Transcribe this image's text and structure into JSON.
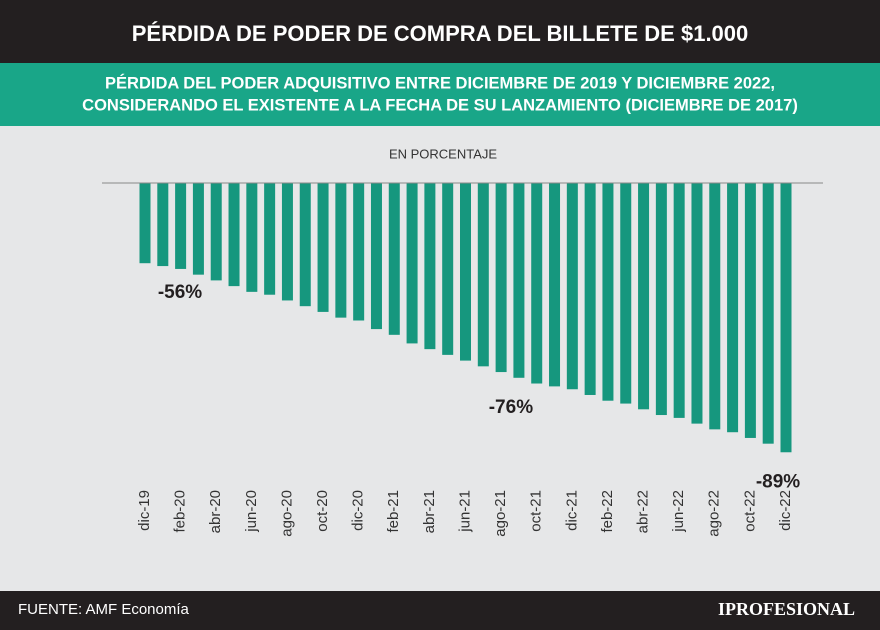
{
  "chart_data": {
    "type": "bar",
    "title": "PÉRDIDA DE PODER DE COMPRA DEL BILLETE DE $1.000",
    "subtitle_lines": [
      "PÉRDIDA DEL PODER ADQUISITIVO ENTRE DICIEMBRE DE 2019 Y DICIEMBRE 2022,",
      "CONSIDERANDO EL EXISTENTE A LA FECHA DE SU LANZAMIENTO (DICIEMBRE DE 2017)"
    ],
    "y_axis_label": "EN PORCENTAJE",
    "categories": [
      "dic-19",
      null,
      "feb-20",
      null,
      "abr-20",
      null,
      "jun-20",
      null,
      "ago-20",
      null,
      "oct-20",
      null,
      "dic-20",
      null,
      "feb-21",
      null,
      "abr-21",
      null,
      "jun-21",
      null,
      "ago-21",
      null,
      "oct-21",
      null,
      "dic-21",
      null,
      "feb-22",
      null,
      "abr-22",
      null,
      "jun-22",
      null,
      "ago-22",
      null,
      "oct-22",
      null,
      "dic-22"
    ],
    "values": [
      -56,
      -56.5,
      -57,
      -58,
      -59,
      -60,
      -61,
      -61.5,
      -62.5,
      -63.5,
      -64.5,
      -65.5,
      -66,
      -67.5,
      -68.5,
      -70,
      -71,
      -72,
      -73,
      -74,
      -75,
      -76,
      -77,
      -77.5,
      -78,
      -79,
      -80,
      -80.5,
      -81.5,
      -82.5,
      -83,
      -84,
      -85,
      -85.5,
      -86.5,
      -87.5,
      -89
    ],
    "value_labels": [
      "-56%",
      null,
      null,
      null,
      null,
      null,
      null,
      null,
      null,
      null,
      null,
      null,
      null,
      null,
      null,
      null,
      null,
      null,
      null,
      null,
      null,
      "-76%",
      null,
      null,
      null,
      null,
      null,
      null,
      null,
      null,
      null,
      null,
      null,
      null,
      null,
      null,
      "-89%"
    ],
    "color": "#16977e",
    "ylim": [
      -42,
      -90
    ],
    "source": "FUENTE: AMF Economía",
    "logo": "IPROFESIONAL"
  }
}
